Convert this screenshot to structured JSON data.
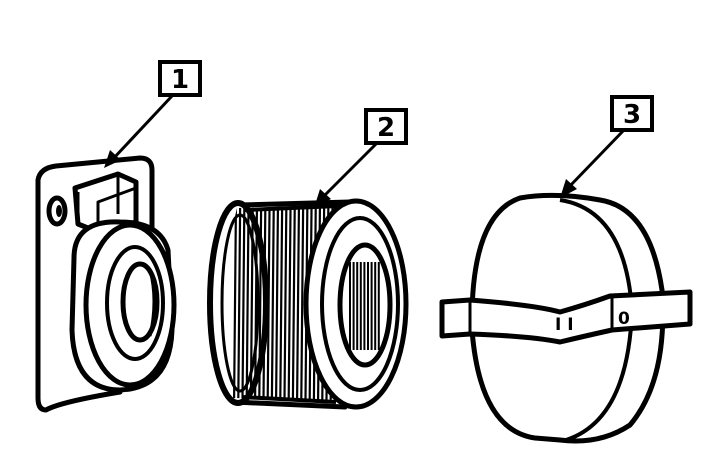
{
  "callouts": [
    {
      "id": "1",
      "label": "1"
    },
    {
      "id": "2",
      "label": "2"
    },
    {
      "id": "3",
      "label": "3"
    }
  ],
  "cap_markings": {
    "left": "I I",
    "right": "0"
  },
  "colors": {
    "ink": "#000000",
    "paper": "#ffffff"
  }
}
